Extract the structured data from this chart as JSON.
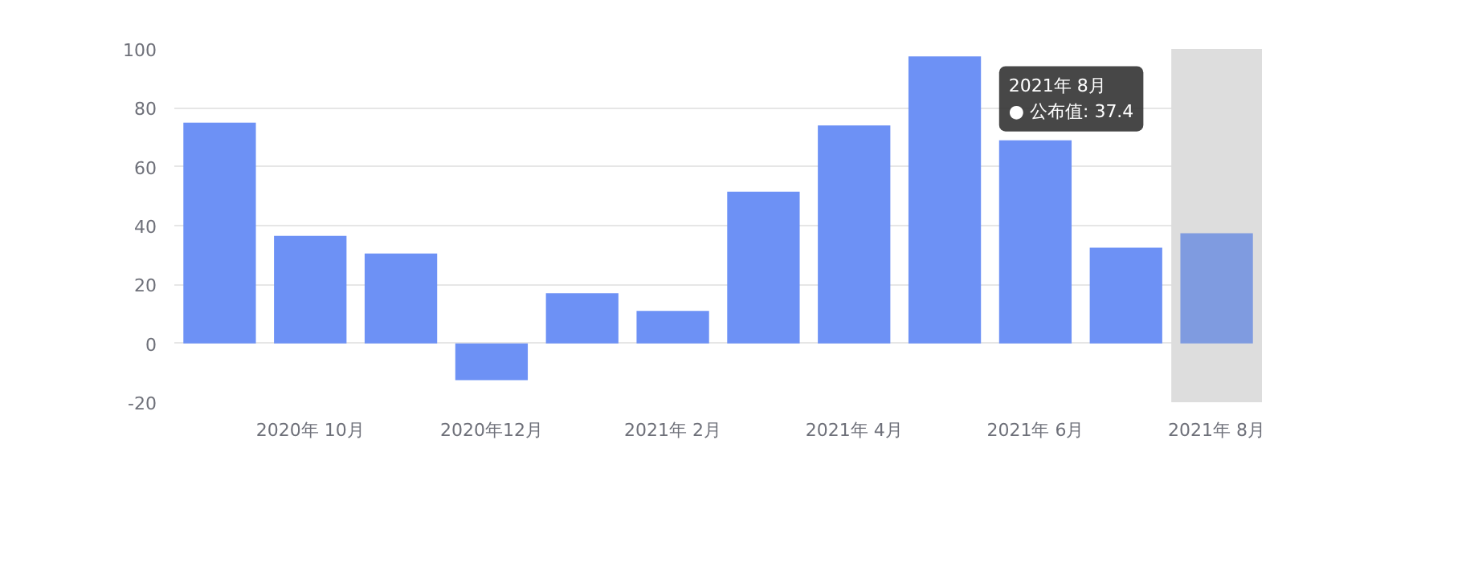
{
  "chart_data": {
    "type": "bar",
    "categories": [
      null,
      "2020年 10月",
      null,
      "2020年12月",
      null,
      "2021年 2月",
      null,
      "2021年 4月",
      null,
      "2021年 6月",
      null,
      "2021年 8月"
    ],
    "values": [
      75,
      36.5,
      30.5,
      -12.5,
      17,
      11,
      51.5,
      74,
      97.5,
      69,
      32.5,
      37.4
    ],
    "colors": [
      "#6d91f5",
      "#6d91f5",
      "#6d91f5",
      "#6d91f5",
      "#6d91f5",
      "#6d91f5",
      "#6d91f5",
      "#6d91f5",
      "#6d91f5",
      "#6d91f5",
      "#6d91f5",
      "#7f9be0"
    ],
    "ylim": [
      -20,
      100
    ],
    "yticks": [
      -20,
      0,
      20,
      40,
      60,
      80,
      100
    ],
    "grid": "y",
    "bands": [
      {
        "axis": "x",
        "from": "2021年 8月",
        "to": "2021年 8月",
        "color": "#dddddd"
      }
    ],
    "annotations": [
      "2021年 8月\n● 公布值: 37.4"
    ]
  }
}
